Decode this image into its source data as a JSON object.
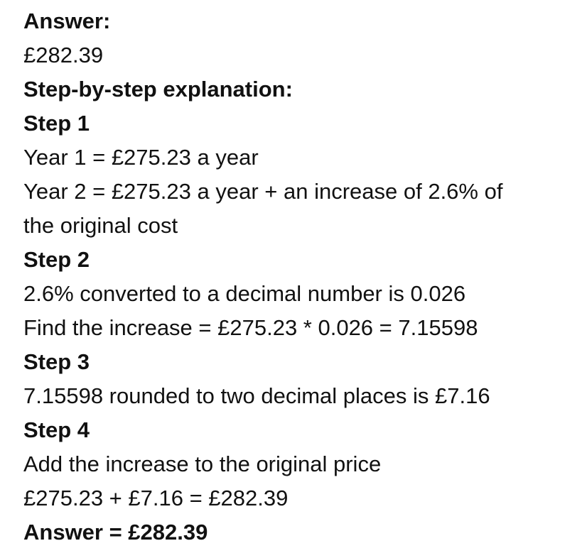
{
  "answer_heading": "Answer:",
  "answer_value": "£282.39",
  "explanation_heading": "Step-by-step explanation:",
  "steps": [
    {
      "title": "Step 1",
      "lines": [
        "Year 1 = £275.23 a year",
        "Year 2 = £275.23 a year + an increase of 2.6% of",
        "the original cost"
      ]
    },
    {
      "title": "Step 2",
      "lines": [
        "2.6% converted to a decimal number is 0.026",
        "Find the increase = £275.23 * 0.026 = 7.15598"
      ]
    },
    {
      "title": "Step 3",
      "lines": [
        "7.15598 rounded to two decimal places is £7.16"
      ]
    },
    {
      "title": "Step 4",
      "lines": [
        "Add the increase to the original price",
        "£275.23 + £7.16 = £282.39"
      ]
    }
  ],
  "final_answer": "Answer = £282.39"
}
